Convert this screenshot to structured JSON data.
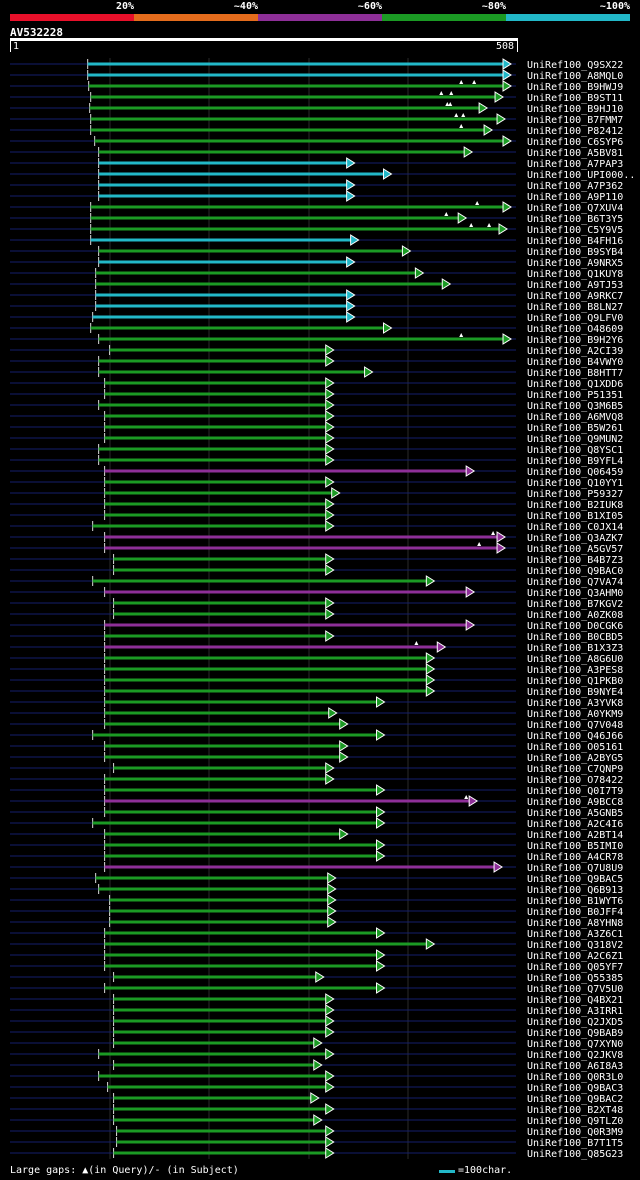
{
  "query_id": "AV532228",
  "query_start": "1",
  "query_end": "508",
  "legend": {
    "labels": [
      "20%",
      "~40%",
      "~60%",
      "~80%",
      "~100%"
    ],
    "colors": [
      "#e8102a",
      "#e46c1c",
      "#8e2f98",
      "#1b9a24",
      "#22b8c8"
    ]
  },
  "footer_note": "Large gaps: ▲(in Query)/- (in Subject)",
  "scale_label": "=100char.",
  "hits": [
    {
      "id": "UniRef100_Q9SX22",
      "c": "c",
      "s": 78,
      "e": 503,
      "m": []
    },
    {
      "id": "UniRef100_A8MQL0",
      "c": "c",
      "s": 78,
      "e": 503,
      "m": []
    },
    {
      "id": "UniRef100_B9HWJ9",
      "c": "g",
      "s": 79,
      "e": 503,
      "m": [
        466,
        453
      ]
    },
    {
      "id": "UniRef100_B9ST11",
      "c": "g",
      "s": 81,
      "e": 495,
      "m": [
        433,
        443
      ]
    },
    {
      "id": "UniRef100_B9HJ10",
      "c": "g",
      "s": 80,
      "e": 479,
      "m": [
        439,
        442
      ]
    },
    {
      "id": "UniRef100_B7FMM7",
      "c": "g",
      "s": 81,
      "e": 497,
      "m": [
        448,
        455
      ]
    },
    {
      "id": "UniRef100_P82412",
      "c": "g",
      "s": 81,
      "e": 484,
      "m": [
        453
      ]
    },
    {
      "id": "UniRef100_C6SYP6",
      "c": "g",
      "s": 85,
      "e": 503,
      "m": []
    },
    {
      "id": "UniRef100_A5BV81",
      "c": "g",
      "s": 89,
      "e": 464,
      "m": []
    },
    {
      "id": "UniRef100_A7PAP3",
      "c": "c",
      "s": 89,
      "e": 346,
      "m": []
    },
    {
      "id": "UniRef100_UPI000..",
      "c": "c",
      "s": 89,
      "e": 383,
      "m": []
    },
    {
      "id": "UniRef100_A7P362",
      "c": "c",
      "s": 89,
      "e": 346,
      "m": []
    },
    {
      "id": "UniRef100_A9P110",
      "c": "c",
      "s": 89,
      "e": 346,
      "m": []
    },
    {
      "id": "UniRef100_Q7XUV4",
      "c": "g",
      "s": 81,
      "e": 503,
      "m": [
        469
      ]
    },
    {
      "id": "UniRef100_B6T3Y5",
      "c": "g",
      "s": 81,
      "e": 458,
      "m": [
        438
      ]
    },
    {
      "id": "UniRef100_C5Y9V5",
      "c": "g",
      "s": 81,
      "e": 499,
      "m": [
        463,
        481
      ]
    },
    {
      "id": "UniRef100_B4FH16",
      "c": "c",
      "s": 81,
      "e": 350,
      "m": []
    },
    {
      "id": "UniRef100_B9SYB4",
      "c": "g",
      "s": 89,
      "e": 402,
      "m": []
    },
    {
      "id": "UniRef100_A9NRX5",
      "c": "c",
      "s": 89,
      "e": 346,
      "m": []
    },
    {
      "id": "UniRef100_Q1KUY8",
      "c": "g",
      "s": 86,
      "e": 415,
      "m": []
    },
    {
      "id": "UniRef100_A9TJ53",
      "c": "g",
      "s": 86,
      "e": 442,
      "m": []
    },
    {
      "id": "UniRef100_A9RKC7",
      "c": "c",
      "s": 86,
      "e": 346,
      "m": []
    },
    {
      "id": "UniRef100_B8LN27",
      "c": "c",
      "s": 86,
      "e": 346,
      "m": []
    },
    {
      "id": "UniRef100_Q9LFV0",
      "c": "c",
      "s": 83,
      "e": 346,
      "m": []
    },
    {
      "id": "UniRef100_O48609",
      "c": "g",
      "s": 81,
      "e": 383,
      "m": []
    },
    {
      "id": "UniRef100_B9H2Y6",
      "c": "g",
      "s": 89,
      "e": 503,
      "m": [
        453
      ]
    },
    {
      "id": "UniRef100_A2CI39",
      "c": "g",
      "s": 100,
      "e": 325,
      "m": []
    },
    {
      "id": "UniRef100_B4VWY0",
      "c": "g",
      "s": 89,
      "e": 325,
      "m": []
    },
    {
      "id": "UniRef100_B8HTT7",
      "c": "g",
      "s": 89,
      "e": 364,
      "m": []
    },
    {
      "id": "UniRef100_Q1XDD6",
      "c": "g",
      "s": 95,
      "e": 325,
      "m": []
    },
    {
      "id": "UniRef100_P51351",
      "c": "g",
      "s": 95,
      "e": 325,
      "m": []
    },
    {
      "id": "UniRef100_Q3M6B5",
      "c": "g",
      "s": 89,
      "e": 325,
      "m": []
    },
    {
      "id": "UniRef100_A6MVQ8",
      "c": "g",
      "s": 95,
      "e": 325,
      "m": []
    },
    {
      "id": "UniRef100_B5W261",
      "c": "g",
      "s": 95,
      "e": 325,
      "m": []
    },
    {
      "id": "UniRef100_Q9MUN2",
      "c": "g",
      "s": 95,
      "e": 325,
      "m": []
    },
    {
      "id": "UniRef100_Q8YSC1",
      "c": "g",
      "s": 89,
      "e": 325,
      "m": []
    },
    {
      "id": "UniRef100_B9YFL4",
      "c": "g",
      "s": 89,
      "e": 325,
      "m": []
    },
    {
      "id": "UniRef100_Q06459",
      "c": "p",
      "s": 95,
      "e": 466,
      "m": []
    },
    {
      "id": "UniRef100_Q10YY1",
      "c": "g",
      "s": 95,
      "e": 325,
      "m": []
    },
    {
      "id": "UniRef100_P59327",
      "c": "g",
      "s": 95,
      "e": 331,
      "m": []
    },
    {
      "id": "UniRef100_B2IUK8",
      "c": "g",
      "s": 95,
      "e": 325,
      "m": []
    },
    {
      "id": "UniRef100_B1XI05",
      "c": "g",
      "s": 95,
      "e": 325,
      "m": []
    },
    {
      "id": "UniRef100_C0JX14",
      "c": "g",
      "s": 83,
      "e": 325,
      "m": []
    },
    {
      "id": "UniRef100_Q3AZK7",
      "c": "p",
      "s": 95,
      "e": 497,
      "m": [
        485
      ]
    },
    {
      "id": "UniRef100_A5GV57",
      "c": "p",
      "s": 95,
      "e": 497,
      "m": [
        471
      ]
    },
    {
      "id": "UniRef100_B4B7Z3",
      "c": "g",
      "s": 104,
      "e": 325,
      "m": []
    },
    {
      "id": "UniRef100_Q9BAC0",
      "c": "g",
      "s": 104,
      "e": 325,
      "m": []
    },
    {
      "id": "UniRef100_Q7VA74",
      "c": "g",
      "s": 83,
      "e": 426,
      "m": []
    },
    {
      "id": "UniRef100_Q3AHM0",
      "c": "p",
      "s": 95,
      "e": 466,
      "m": []
    },
    {
      "id": "UniRef100_B7KGV2",
      "c": "g",
      "s": 104,
      "e": 325,
      "m": []
    },
    {
      "id": "UniRef100_A0ZK08",
      "c": "g",
      "s": 104,
      "e": 325,
      "m": []
    },
    {
      "id": "UniRef100_D0CGK6",
      "c": "p",
      "s": 95,
      "e": 466,
      "m": []
    },
    {
      "id": "UniRef100_B0CBD5",
      "c": "g",
      "s": 95,
      "e": 325,
      "m": []
    },
    {
      "id": "UniRef100_B1X3Z3",
      "c": "p",
      "s": 95,
      "e": 437,
      "m": [
        408
      ]
    },
    {
      "id": "UniRef100_A8G6U0",
      "c": "g",
      "s": 95,
      "e": 426,
      "m": []
    },
    {
      "id": "UniRef100_A3PES8",
      "c": "g",
      "s": 95,
      "e": 426,
      "m": []
    },
    {
      "id": "UniRef100_Q1PKB0",
      "c": "g",
      "s": 95,
      "e": 426,
      "m": []
    },
    {
      "id": "UniRef100_B9NYE4",
      "c": "g",
      "s": 95,
      "e": 426,
      "m": []
    },
    {
      "id": "UniRef100_A3YVK8",
      "c": "g",
      "s": 95,
      "e": 376,
      "m": []
    },
    {
      "id": "UniRef100_A0YKM9",
      "c": "g",
      "s": 95,
      "e": 328,
      "m": []
    },
    {
      "id": "UniRef100_Q7V048",
      "c": "g",
      "s": 95,
      "e": 339,
      "m": []
    },
    {
      "id": "UniRef100_Q46J66",
      "c": "g",
      "s": 83,
      "e": 376,
      "m": []
    },
    {
      "id": "UniRef100_O05161",
      "c": "g",
      "s": 95,
      "e": 339,
      "m": []
    },
    {
      "id": "UniRef100_A2BYG5",
      "c": "g",
      "s": 95,
      "e": 339,
      "m": []
    },
    {
      "id": "UniRef100_C7QNP9",
      "c": "g",
      "s": 104,
      "e": 325,
      "m": []
    },
    {
      "id": "UniRef100_O78422",
      "c": "g",
      "s": 95,
      "e": 325,
      "m": []
    },
    {
      "id": "UniRef100_Q0I7T9",
      "c": "g",
      "s": 95,
      "e": 376,
      "m": []
    },
    {
      "id": "UniRef100_A9BCC8",
      "c": "p",
      "s": 95,
      "e": 469,
      "m": [
        458
      ]
    },
    {
      "id": "UniRef100_A5GNB5",
      "c": "g",
      "s": 95,
      "e": 376,
      "m": []
    },
    {
      "id": "UniRef100_A2C4I6",
      "c": "g",
      "s": 83,
      "e": 376,
      "m": []
    },
    {
      "id": "UniRef100_A2BT14",
      "c": "g",
      "s": 95,
      "e": 339,
      "m": []
    },
    {
      "id": "UniRef100_B5IMI0",
      "c": "g",
      "s": 95,
      "e": 376,
      "m": []
    },
    {
      "id": "UniRef100_A4CR78",
      "c": "g",
      "s": 95,
      "e": 376,
      "m": []
    },
    {
      "id": "UniRef100_Q7U8U9",
      "c": "p",
      "s": 95,
      "e": 494,
      "m": []
    },
    {
      "id": "UniRef100_Q9BAC5",
      "c": "g",
      "s": 86,
      "e": 327,
      "m": []
    },
    {
      "id": "UniRef100_Q6B913",
      "c": "g",
      "s": 89,
      "e": 327,
      "m": []
    },
    {
      "id": "UniRef100_B1WYT6",
      "c": "g",
      "s": 100,
      "e": 327,
      "m": []
    },
    {
      "id": "UniRef100_B0JFF4",
      "c": "g",
      "s": 100,
      "e": 327,
      "m": []
    },
    {
      "id": "UniRef100_A8YHN8",
      "c": "g",
      "s": 100,
      "e": 327,
      "m": []
    },
    {
      "id": "UniRef100_A3Z6C1",
      "c": "g",
      "s": 95,
      "e": 376,
      "m": []
    },
    {
      "id": "UniRef100_Q318V2",
      "c": "g",
      "s": 95,
      "e": 426,
      "m": []
    },
    {
      "id": "UniRef100_A2C6Z1",
      "c": "g",
      "s": 95,
      "e": 376,
      "m": []
    },
    {
      "id": "UniRef100_Q05YF7",
      "c": "g",
      "s": 95,
      "e": 376,
      "m": []
    },
    {
      "id": "UniRef100_Q55385",
      "c": "g",
      "s": 104,
      "e": 315,
      "m": []
    },
    {
      "id": "UniRef100_Q7V5U0",
      "c": "g",
      "s": 95,
      "e": 376,
      "m": []
    },
    {
      "id": "UniRef100_Q4BX21",
      "c": "g",
      "s": 104,
      "e": 325,
      "m": []
    },
    {
      "id": "UniRef100_A3IRR1",
      "c": "g",
      "s": 104,
      "e": 325,
      "m": []
    },
    {
      "id": "UniRef100_Q2JXD5",
      "c": "g",
      "s": 104,
      "e": 325,
      "m": []
    },
    {
      "id": "UniRef100_Q9BAB9",
      "c": "g",
      "s": 104,
      "e": 325,
      "m": []
    },
    {
      "id": "UniRef100_Q7XYN0",
      "c": "g",
      "s": 104,
      "e": 313,
      "m": []
    },
    {
      "id": "UniRef100_Q2JKV8",
      "c": "g",
      "s": 89,
      "e": 325,
      "m": []
    },
    {
      "id": "UniRef100_A6I8A3",
      "c": "g",
      "s": 104,
      "e": 313,
      "m": []
    },
    {
      "id": "UniRef100_Q0R3L0",
      "c": "g",
      "s": 89,
      "e": 325,
      "m": []
    },
    {
      "id": "UniRef100_Q9BAC3",
      "c": "g",
      "s": 98,
      "e": 325,
      "m": []
    },
    {
      "id": "UniRef100_Q9BAC2",
      "c": "g",
      "s": 104,
      "e": 310,
      "m": []
    },
    {
      "id": "UniRef100_B2XT48",
      "c": "g",
      "s": 104,
      "e": 325,
      "m": []
    },
    {
      "id": "UniRef100_Q9TLZ0",
      "c": "g",
      "s": 104,
      "e": 313,
      "m": []
    },
    {
      "id": "UniRef100_Q0R3M9",
      "c": "g",
      "s": 107,
      "e": 325,
      "m": []
    },
    {
      "id": "UniRef100_B7T1T5",
      "c": "g",
      "s": 107,
      "e": 325,
      "m": []
    },
    {
      "id": "UniRef100_Q85G23",
      "c": "g",
      "s": 104,
      "e": 325,
      "m": []
    }
  ]
}
